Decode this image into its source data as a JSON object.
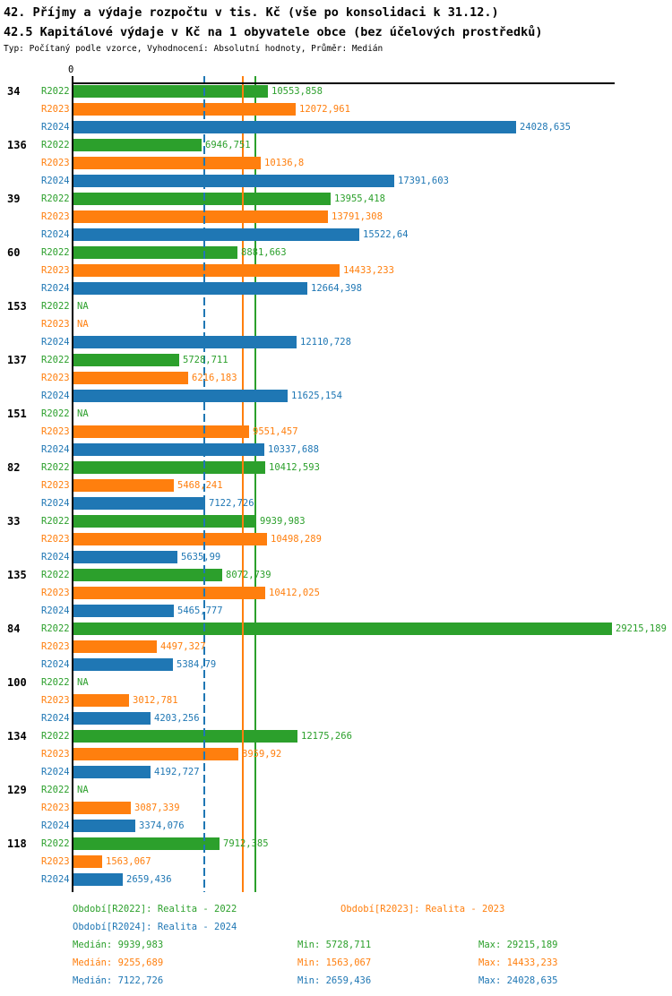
{
  "header": {
    "title1": "42. Příjmy a výdaje rozpočtu v tis. Kč (vše po konsolidaci k 31.12.)",
    "title2": "42.5 Kapitálové výdaje v Kč na 1 obyvatele obce (bez účelových prostředků)",
    "subtitle": "Typ: Počítaný podle vzorce, Vyhodnocení: Absolutní hodnoty, Průměr: Medián"
  },
  "chart_data": {
    "type": "bar",
    "orientation": "horizontal",
    "zero_label": "0",
    "series_labels": [
      "R2022",
      "R2023",
      "R2024"
    ],
    "series_colors": [
      "#2ca02c",
      "#ff7f0e",
      "#1f77b4"
    ],
    "xlim": [
      0,
      29215.189
    ],
    "grid": false,
    "medians": [
      9939.983,
      9255.689,
      7122.726
    ],
    "groups": [
      {
        "id": "34",
        "values": [
          10553.858,
          12072.961,
          24028.635
        ],
        "labels": [
          "10553,858",
          "12072,961",
          "24028,635"
        ]
      },
      {
        "id": "136",
        "values": [
          6946.751,
          10136.8,
          17391.603
        ],
        "labels": [
          "6946,751",
          "10136,8",
          "17391,603"
        ]
      },
      {
        "id": "39",
        "values": [
          13955.418,
          13791.308,
          15522.64
        ],
        "labels": [
          "13955,418",
          "13791,308",
          "15522,64"
        ]
      },
      {
        "id": "60",
        "values": [
          8881.663,
          14433.233,
          12664.398
        ],
        "labels": [
          "8881,663",
          "14433,233",
          "12664,398"
        ]
      },
      {
        "id": "153",
        "values": [
          null,
          null,
          12110.728
        ],
        "labels": [
          "NA",
          "NA",
          "12110,728"
        ]
      },
      {
        "id": "137",
        "values": [
          5728.711,
          6216.183,
          11625.154
        ],
        "labels": [
          "5728,711",
          "6216,183",
          "11625,154"
        ]
      },
      {
        "id": "151",
        "values": [
          null,
          9551.457,
          10337.688
        ],
        "labels": [
          "NA",
          "9551,457",
          "10337,688"
        ]
      },
      {
        "id": "82",
        "values": [
          10412.593,
          5468.241,
          7122.726
        ],
        "labels": [
          "10412,593",
          "5468,241",
          "7122,726"
        ]
      },
      {
        "id": "33",
        "values": [
          9939.983,
          10498.289,
          5635.99
        ],
        "labels": [
          "9939,983",
          "10498,289",
          "5635,99"
        ]
      },
      {
        "id": "135",
        "values": [
          8072.739,
          10412.025,
          5465.777
        ],
        "labels": [
          "8072,739",
          "10412,025",
          "5465,777"
        ]
      },
      {
        "id": "84",
        "values": [
          29215.189,
          4497.327,
          5384.79
        ],
        "labels": [
          "29215,189",
          "4497,327",
          "5384,79"
        ]
      },
      {
        "id": "100",
        "values": [
          null,
          3012.781,
          4203.256
        ],
        "labels": [
          "NA",
          "3012,781",
          "4203,256"
        ]
      },
      {
        "id": "134",
        "values": [
          12175.266,
          8959.92,
          4192.727
        ],
        "labels": [
          "12175,266",
          "8959,92",
          "4192,727"
        ]
      },
      {
        "id": "129",
        "values": [
          null,
          3087.339,
          3374.076
        ],
        "labels": [
          "NA",
          "3087,339",
          "3374,076"
        ]
      },
      {
        "id": "118",
        "values": [
          7912.385,
          1563.067,
          2659.436
        ],
        "labels": [
          "7912,385",
          "1563,067",
          "2659,436"
        ]
      }
    ]
  },
  "legend": {
    "r2022": "Období[R2022]: Realita - 2022",
    "r2023": "Období[R2023]: Realita - 2023",
    "r2024": "Období[R2024]: Realita - 2024"
  },
  "stats": [
    {
      "median": "Medián: 9939,983",
      "min": "Min: 5728,711",
      "max": "Max: 29215,189"
    },
    {
      "median": "Medián: 9255,689",
      "min": "Min: 1563,067",
      "max": "Max: 14433,233"
    },
    {
      "median": "Medián: 7122,726",
      "min": "Min: 2659,436",
      "max": "Max: 24028,635"
    }
  ]
}
